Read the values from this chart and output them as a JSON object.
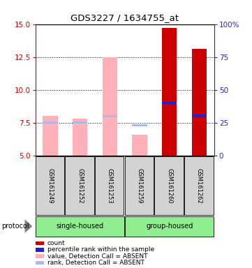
{
  "title": "GDS3227 / 1634755_at",
  "samples": [
    "GSM161249",
    "GSM161252",
    "GSM161253",
    "GSM161259",
    "GSM161260",
    "GSM161262"
  ],
  "ylim_left": [
    5,
    15
  ],
  "ylim_right": [
    0,
    100
  ],
  "yticks_left": [
    5,
    7.5,
    10,
    12.5,
    15
  ],
  "yticks_right": [
    0,
    25,
    50,
    75,
    100
  ],
  "value_absent": [
    8.0,
    7.8,
    12.5,
    6.6,
    null,
    null
  ],
  "rank_absent": [
    7.5,
    7.5,
    8.0,
    7.3,
    null,
    null
  ],
  "count_present": [
    null,
    null,
    null,
    null,
    14.7,
    13.1
  ],
  "percentile_present": [
    null,
    null,
    null,
    null,
    9.0,
    8.0
  ],
  "bar_bottom": 5,
  "bar_width": 0.5,
  "pink_color": "#FFB0B8",
  "lightblue_color": "#b0b8e8",
  "red_color": "#cc0000",
  "blue_color": "#2222cc",
  "sample_box_color": "#d3d3d3",
  "left_axis_color": "#cc0000",
  "right_axis_color": "#2222cc",
  "green_color": "#90ee90",
  "legend_items": [
    {
      "color": "#cc0000",
      "label": "count"
    },
    {
      "color": "#2222cc",
      "label": "percentile rank within the sample"
    },
    {
      "color": "#FFB0B8",
      "label": "value, Detection Call = ABSENT"
    },
    {
      "color": "#b0b8e8",
      "label": "rank, Detection Call = ABSENT"
    }
  ]
}
